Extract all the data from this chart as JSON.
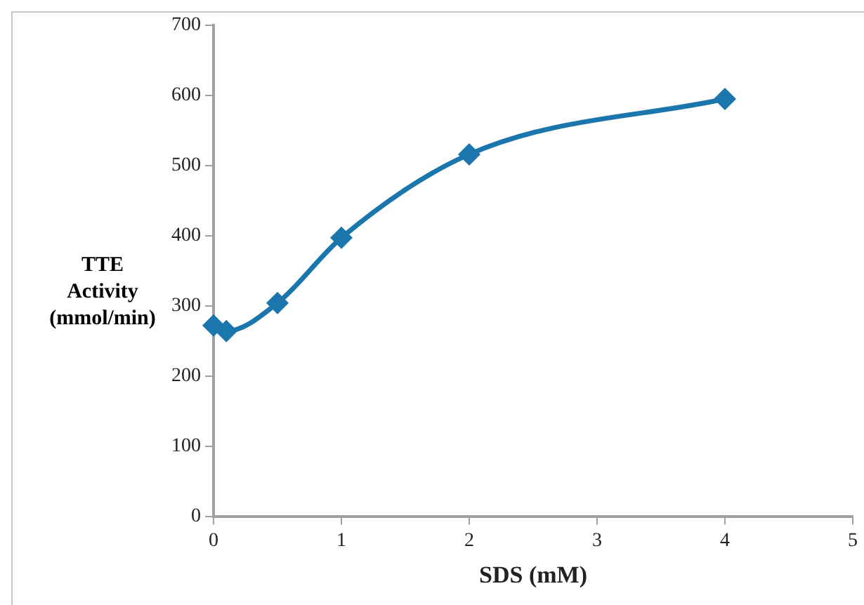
{
  "chart_data": {
    "type": "line",
    "xlabel": "SDS (mM)",
    "ylabel": "TTE\nActivity\n(mmol/min)",
    "x": [
      0,
      0.1,
      0.5,
      1,
      2,
      4
    ],
    "series": [
      {
        "color": "#1b76ad",
        "values": [
          272,
          264,
          304,
          397,
          516,
          595
        ]
      }
    ],
    "xlim": [
      0,
      5
    ],
    "xticks": [
      0,
      1,
      2,
      3,
      4,
      5
    ],
    "ylim": [
      0,
      700
    ],
    "yticks": [
      0,
      100,
      200,
      300,
      400,
      500,
      600,
      700
    ],
    "grid": false,
    "legend": false,
    "marker": "diamond",
    "line_style": "solid"
  }
}
